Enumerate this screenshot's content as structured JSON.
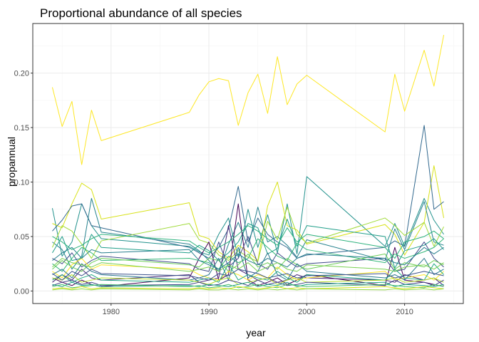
{
  "chart_data": {
    "type": "line",
    "title": "Proportional abundance of all species",
    "xlabel": "year",
    "ylabel": "propannual",
    "xlim": [
      1972.0,
      2016.0
    ],
    "ylim": [
      -0.0115,
      0.2455
    ],
    "x_ticks": [
      1980,
      1990,
      2000,
      2010
    ],
    "y_ticks": [
      0.0,
      0.05,
      0.1,
      0.15,
      0.2
    ],
    "y_tick_labels": [
      "0.00",
      "0.05",
      "0.10",
      "0.15",
      "0.20"
    ],
    "grid": true,
    "legend": "none",
    "x": [
      1974,
      1975,
      1976,
      1977,
      1978,
      1979,
      1988,
      1989,
      1990,
      1991,
      1992,
      1993,
      1994,
      1995,
      1996,
      1997,
      1998,
      1999,
      2000,
      2008,
      2009,
      2010,
      2012,
      2013,
      2014
    ],
    "series": [
      {
        "color": "#fde725",
        "values": [
          0.187,
          0.151,
          0.174,
          0.116,
          0.166,
          0.138,
          0.164,
          0.18,
          0.192,
          0.195,
          0.193,
          0.152,
          0.182,
          0.199,
          0.163,
          0.215,
          0.171,
          0.19,
          0.198,
          0.146,
          0.199,
          0.165,
          0.221,
          0.188,
          0.235
        ]
      },
      {
        "color": "#21918c",
        "values": [
          0.076,
          0.032,
          0.045,
          0.08,
          0.06,
          0.048,
          0.041,
          0.036,
          0.033,
          0.052,
          0.067,
          0.031,
          0.075,
          0.04,
          0.07,
          0.035,
          0.08,
          0.034,
          0.105,
          0.041,
          0.062,
          0.041,
          0.085,
          0.065,
          0.052
        ]
      },
      {
        "color": "#d8e219",
        "values": [
          0.062,
          0.058,
          0.08,
          0.099,
          0.093,
          0.066,
          0.081,
          0.051,
          0.048,
          0.036,
          0.03,
          0.042,
          0.036,
          0.028,
          0.078,
          0.1,
          0.06,
          0.056,
          0.043,
          0.061,
          0.052,
          0.033,
          0.063,
          0.115,
          0.067
        ]
      },
      {
        "color": "#31688e",
        "values": [
          0.055,
          0.065,
          0.078,
          0.08,
          0.06,
          0.058,
          0.04,
          0.035,
          0.03,
          0.04,
          0.057,
          0.096,
          0.045,
          0.067,
          0.052,
          0.045,
          0.04,
          0.03,
          0.033,
          0.04,
          0.046,
          0.041,
          0.152,
          0.075,
          0.082
        ]
      },
      {
        "color": "#26828e",
        "values": [
          0.045,
          0.038,
          0.02,
          0.032,
          0.085,
          0.054,
          0.043,
          0.037,
          0.028,
          0.018,
          0.043,
          0.063,
          0.04,
          0.077,
          0.045,
          0.05,
          0.042,
          0.031,
          0.047,
          0.028,
          0.057,
          0.038,
          0.082,
          0.045,
          0.042
        ]
      },
      {
        "color": "#a0da39",
        "values": [
          0.04,
          0.06,
          0.055,
          0.043,
          0.03,
          0.046,
          0.062,
          0.047,
          0.044,
          0.033,
          0.028,
          0.037,
          0.031,
          0.027,
          0.064,
          0.047,
          0.077,
          0.052,
          0.044,
          0.067,
          0.06,
          0.051,
          0.063,
          0.041,
          0.059
        ]
      },
      {
        "color": "#1f9e89",
        "values": [
          0.035,
          0.05,
          0.028,
          0.03,
          0.052,
          0.04,
          0.035,
          0.042,
          0.037,
          0.028,
          0.035,
          0.045,
          0.062,
          0.058,
          0.034,
          0.039,
          0.066,
          0.041,
          0.06,
          0.05,
          0.021,
          0.037,
          0.042,
          0.048,
          0.038
        ]
      },
      {
        "color": "#440154",
        "values": [
          0.012,
          0.008,
          0.005,
          0.01,
          0.006,
          0.004,
          0.012,
          0.03,
          0.045,
          0.01,
          0.015,
          0.08,
          0.01,
          0.005,
          0.008,
          0.012,
          0.006,
          0.01,
          0.015,
          0.005,
          0.04,
          0.01,
          0.008,
          0.006,
          0.004
        ]
      },
      {
        "color": "#482878",
        "values": [
          0.008,
          0.015,
          0.01,
          0.02,
          0.012,
          0.01,
          0.015,
          0.008,
          0.01,
          0.012,
          0.06,
          0.02,
          0.015,
          0.01,
          0.012,
          0.008,
          0.01,
          0.015,
          0.012,
          0.01,
          0.008,
          0.015,
          0.01,
          0.012,
          0.005
        ]
      },
      {
        "color": "#3e4989",
        "values": [
          0.03,
          0.025,
          0.035,
          0.022,
          0.028,
          0.032,
          0.025,
          0.02,
          0.018,
          0.045,
          0.022,
          0.03,
          0.05,
          0.025,
          0.02,
          0.035,
          0.028,
          0.022,
          0.025,
          0.03,
          0.018,
          0.02,
          0.045,
          0.03,
          0.022
        ]
      },
      {
        "color": "#35b779",
        "values": [
          0.025,
          0.018,
          0.03,
          0.04,
          0.035,
          0.028,
          0.03,
          0.028,
          0.026,
          0.02,
          0.032,
          0.026,
          0.03,
          0.048,
          0.04,
          0.032,
          0.028,
          0.044,
          0.038,
          0.026,
          0.034,
          0.03,
          0.036,
          0.04,
          0.048
        ]
      },
      {
        "color": "#6ece58",
        "values": [
          0.02,
          0.028,
          0.022,
          0.018,
          0.026,
          0.03,
          0.024,
          0.022,
          0.03,
          0.028,
          0.018,
          0.024,
          0.034,
          0.022,
          0.026,
          0.02,
          0.03,
          0.024,
          0.02,
          0.034,
          0.02,
          0.026,
          0.022,
          0.028,
          0.024
        ]
      },
      {
        "color": "#fde725",
        "values": [
          0.018,
          0.012,
          0.024,
          0.03,
          0.02,
          0.024,
          0.02,
          0.015,
          0.012,
          0.01,
          0.018,
          0.015,
          0.01,
          0.015,
          0.012,
          0.022,
          0.015,
          0.01,
          0.012,
          0.018,
          0.01,
          0.012,
          0.015,
          0.01,
          0.018
        ]
      },
      {
        "color": "#2a788e",
        "values": [
          0.015,
          0.02,
          0.012,
          0.025,
          0.018,
          0.015,
          0.01,
          0.012,
          0.015,
          0.03,
          0.01,
          0.04,
          0.012,
          0.018,
          0.035,
          0.015,
          0.01,
          0.025,
          0.018,
          0.012,
          0.015,
          0.01,
          0.03,
          0.015,
          0.02
        ]
      },
      {
        "color": "#22a884",
        "values": [
          0.01,
          0.015,
          0.008,
          0.012,
          0.015,
          0.01,
          0.008,
          0.01,
          0.012,
          0.008,
          0.025,
          0.01,
          0.015,
          0.012,
          0.01,
          0.018,
          0.012,
          0.008,
          0.015,
          0.01,
          0.02,
          0.012,
          0.01,
          0.025,
          0.015
        ]
      },
      {
        "color": "#b5de2b",
        "values": [
          0.012,
          0.01,
          0.015,
          0.008,
          0.01,
          0.012,
          0.01,
          0.008,
          0.006,
          0.01,
          0.012,
          0.006,
          0.008,
          0.01,
          0.012,
          0.006,
          0.01,
          0.012,
          0.008,
          0.01,
          0.012,
          0.008,
          0.01,
          0.012,
          0.008
        ]
      },
      {
        "color": "#414487",
        "values": [
          0.005,
          0.008,
          0.01,
          0.006,
          0.008,
          0.005,
          0.006,
          0.008,
          0.005,
          0.006,
          0.01,
          0.008,
          0.005,
          0.01,
          0.006,
          0.008,
          0.005,
          0.006,
          0.008,
          0.005,
          0.01,
          0.006,
          0.008,
          0.005,
          0.01
        ]
      },
      {
        "color": "#1fa187",
        "values": [
          0.006,
          0.004,
          0.008,
          0.005,
          0.006,
          0.004,
          0.005,
          0.004,
          0.006,
          0.005,
          0.004,
          0.006,
          0.008,
          0.004,
          0.006,
          0.005,
          0.008,
          0.004,
          0.006,
          0.008,
          0.004,
          0.006,
          0.005,
          0.004,
          0.006
        ]
      },
      {
        "color": "#4ac16d",
        "values": [
          0.004,
          0.006,
          0.003,
          0.004,
          0.005,
          0.006,
          0.004,
          0.005,
          0.003,
          0.004,
          0.006,
          0.003,
          0.004,
          0.006,
          0.004,
          0.003,
          0.006,
          0.005,
          0.004,
          0.006,
          0.005,
          0.004,
          0.003,
          0.006,
          0.004
        ]
      },
      {
        "color": "#d8e219",
        "values": [
          0.002,
          0.003,
          0.002,
          0.004,
          0.002,
          0.003,
          0.002,
          0.003,
          0.002,
          0.003,
          0.002,
          0.004,
          0.003,
          0.002,
          0.003,
          0.004,
          0.002,
          0.003,
          0.002,
          0.004,
          0.003,
          0.002,
          0.004,
          0.003,
          0.002
        ]
      },
      {
        "color": "#90d743",
        "values": [
          0.001,
          0.002,
          0.001,
          0.002,
          0.001,
          0.002,
          0.001,
          0.002,
          0.001,
          0.001,
          0.002,
          0.001,
          0.002,
          0.001,
          0.002,
          0.001,
          0.002,
          0.001,
          0.002,
          0.001,
          0.002,
          0.001,
          0.002,
          0.001,
          0.002
        ]
      },
      {
        "color": "#277f8e",
        "values": [
          0.028,
          0.035,
          0.04,
          0.03,
          0.038,
          0.035,
          0.038,
          0.028,
          0.024,
          0.02,
          0.026,
          0.034,
          0.028,
          0.024,
          0.03,
          0.026,
          0.022,
          0.03,
          0.034,
          0.03,
          0.026,
          0.024,
          0.04,
          0.034,
          0.04
        ]
      },
      {
        "color": "#7ad151",
        "values": [
          0.022,
          0.03,
          0.026,
          0.024,
          0.022,
          0.026,
          0.018,
          0.02,
          0.022,
          0.018,
          0.024,
          0.02,
          0.026,
          0.018,
          0.022,
          0.026,
          0.02,
          0.018,
          0.024,
          0.02,
          0.018,
          0.022,
          0.024,
          0.02,
          0.026
        ]
      },
      {
        "color": "#3b528b",
        "values": [
          0.016,
          0.01,
          0.018,
          0.014,
          0.02,
          0.016,
          0.014,
          0.012,
          0.01,
          0.016,
          0.014,
          0.02,
          0.018,
          0.016,
          0.012,
          0.014,
          0.016,
          0.012,
          0.014,
          0.016,
          0.012,
          0.014,
          0.018,
          0.016,
          0.014
        ]
      },
      {
        "color": "#2db27d",
        "values": [
          0.05,
          0.045,
          0.038,
          0.042,
          0.048,
          0.052,
          0.046,
          0.04,
          0.035,
          0.04,
          0.045,
          0.052,
          0.06,
          0.055,
          0.048,
          0.042,
          0.058,
          0.045,
          0.052,
          0.04,
          0.03,
          0.045,
          0.05,
          0.055,
          0.048
        ]
      }
    ]
  }
}
